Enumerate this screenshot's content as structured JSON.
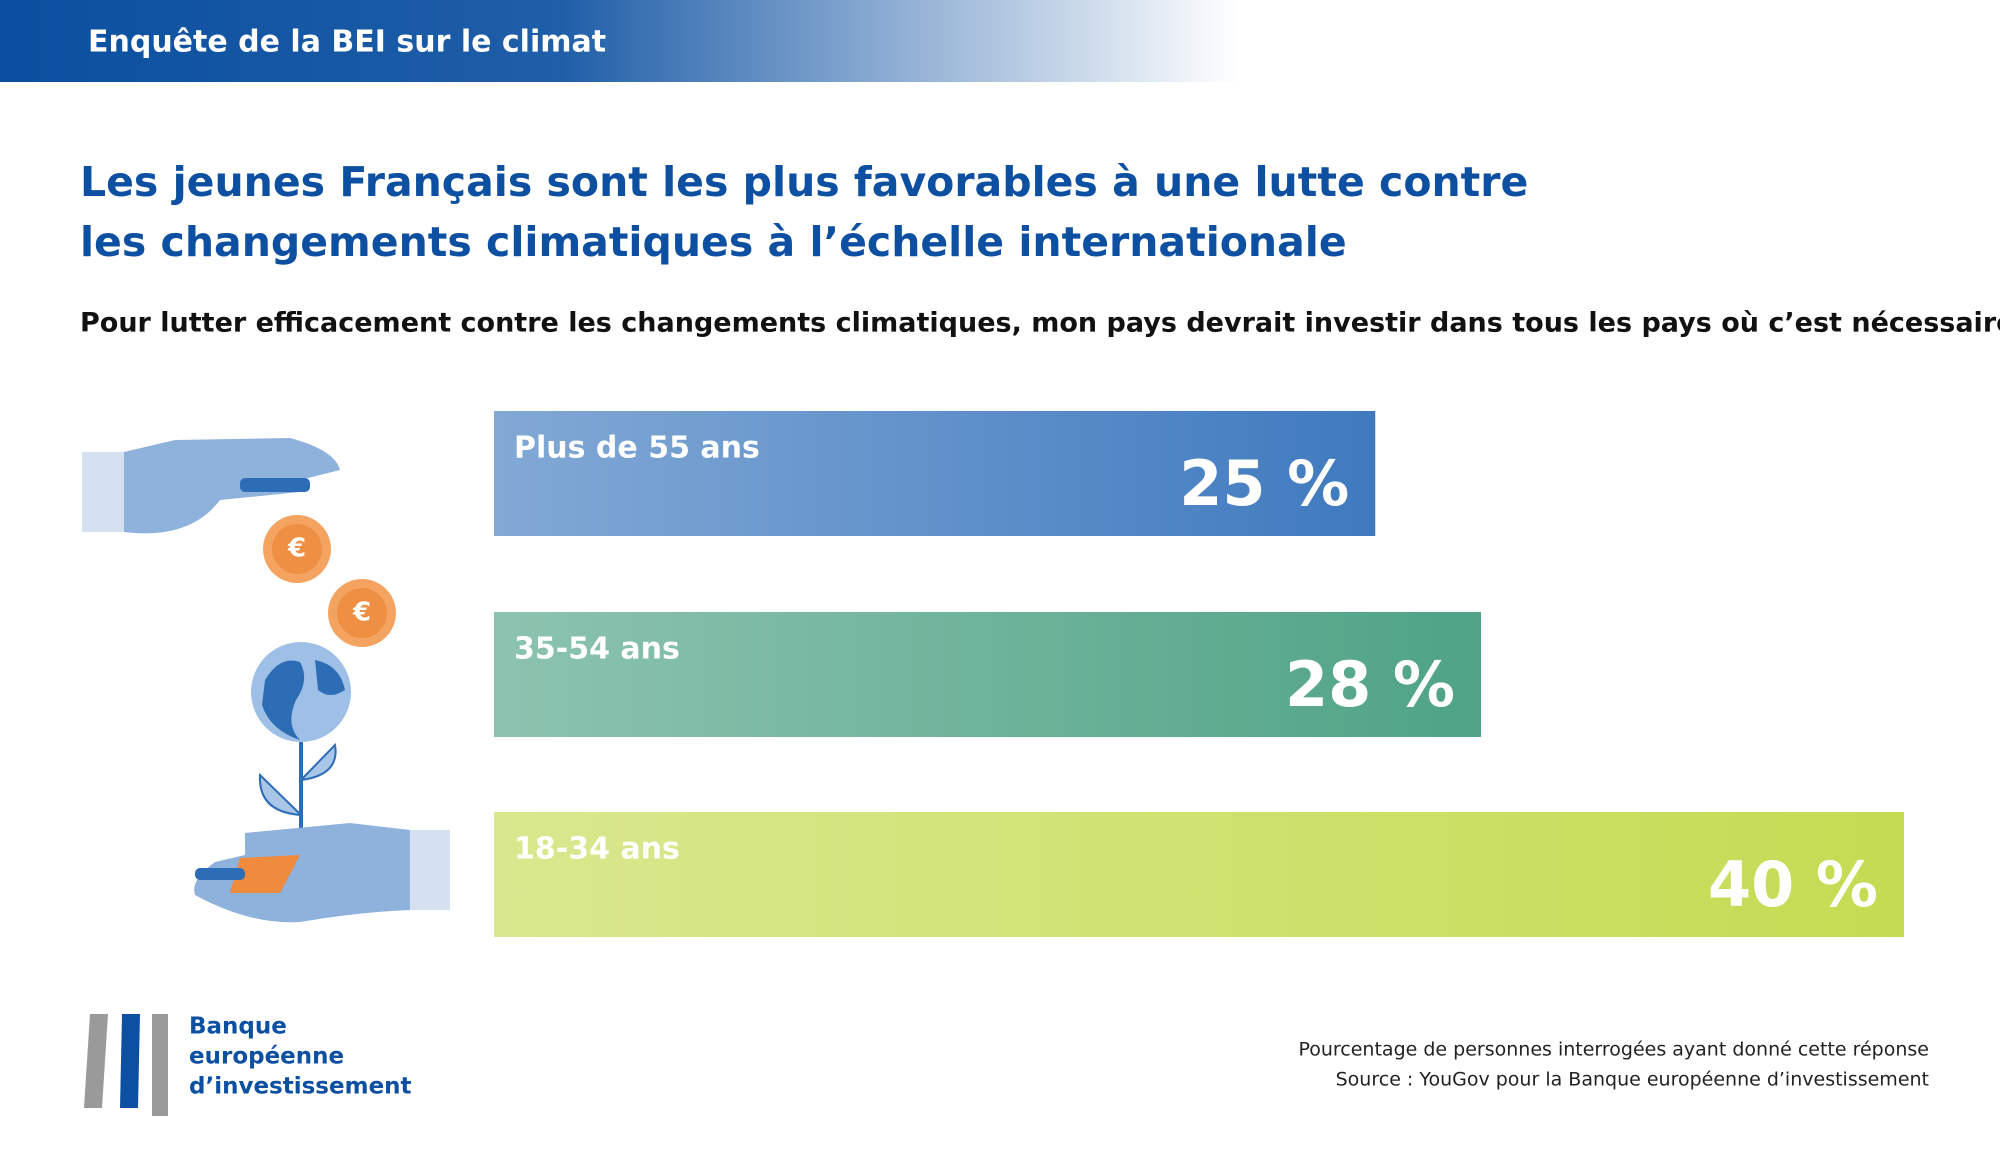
{
  "header": {
    "title": "Enquête de la BEI sur le climat"
  },
  "chart_data": {
    "type": "bar",
    "title": [
      "Les jeunes Français sont les plus favorables à une lutte contre",
      "les changements climatiques à l’échelle internationale"
    ],
    "subtitle": "Pour lutter efficacement contre les changements climatiques, mon pays devrait investir dans tous les pays où c’est nécessaire.",
    "categories": [
      "Plus de 55 ans",
      "35-54 ans",
      "18-34 ans"
    ],
    "values": [
      25,
      28,
      40
    ],
    "value_labels": [
      "25 %",
      "28 %",
      "40 %"
    ],
    "colors": [
      "#3f7abf",
      "#4fa386",
      "#c5db52"
    ],
    "notes": [
      "Pourcentage de personnes interrogées ayant donné cette réponse",
      "Source : YouGov pour la Banque européenne d’investissement"
    ]
  },
  "illustration": {
    "coins": [
      "€",
      "€"
    ]
  },
  "logo": {
    "lines": [
      "Banque",
      "européenne",
      "d’investissement"
    ]
  }
}
